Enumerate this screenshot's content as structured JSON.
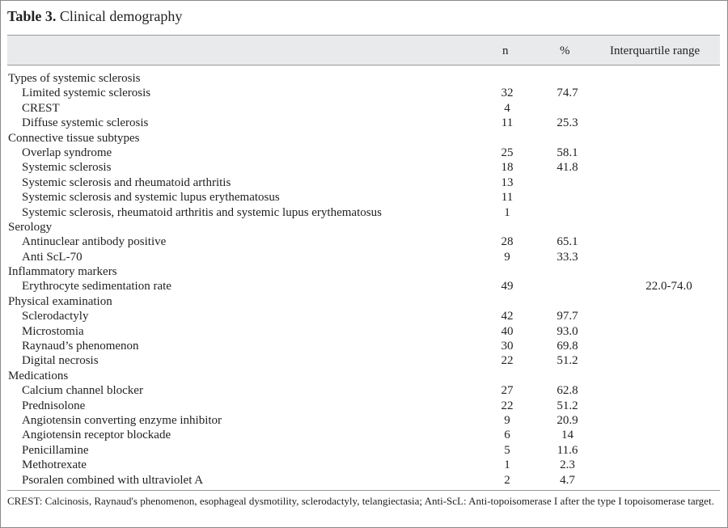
{
  "title": {
    "label": "Table 3.",
    "text": "Clinical demography"
  },
  "columns": [
    "n",
    "%",
    "Interquartile range"
  ],
  "rows": [
    {
      "label": "Types of systemic sclerosis",
      "type": "group",
      "n": "",
      "pct": "",
      "iqr": ""
    },
    {
      "label": "Limited systemic sclerosis",
      "type": "sub",
      "n": "32",
      "pct": "74.7",
      "iqr": ""
    },
    {
      "label": "CREST",
      "type": "sub",
      "n": "4",
      "pct": "",
      "iqr": ""
    },
    {
      "label": "Diffuse systemic sclerosis",
      "type": "sub",
      "n": "11",
      "pct": "25.3",
      "iqr": ""
    },
    {
      "label": "Connective tissue subtypes",
      "type": "group",
      "n": "",
      "pct": "",
      "iqr": ""
    },
    {
      "label": "Overlap syndrome",
      "type": "sub",
      "n": "25",
      "pct": "58.1",
      "iqr": ""
    },
    {
      "label": "Systemic sclerosis",
      "type": "sub",
      "n": "18",
      "pct": "41.8",
      "iqr": ""
    },
    {
      "label": "Systemic sclerosis and rheumatoid arthritis",
      "type": "sub",
      "n": "13",
      "pct": "",
      "iqr": ""
    },
    {
      "label": "Systemic sclerosis and systemic lupus erythematosus",
      "type": "sub",
      "n": "11",
      "pct": "",
      "iqr": ""
    },
    {
      "label": "Systemic sclerosis, rheumatoid arthritis and systemic lupus erythematosus",
      "type": "sub",
      "n": "1",
      "pct": "",
      "iqr": ""
    },
    {
      "label": "Serology",
      "type": "group",
      "n": "",
      "pct": "",
      "iqr": ""
    },
    {
      "label": "Antinuclear antibody positive",
      "type": "sub",
      "n": "28",
      "pct": "65.1",
      "iqr": ""
    },
    {
      "label": "Anti ScL-70",
      "type": "sub",
      "n": "9",
      "pct": "33.3",
      "iqr": ""
    },
    {
      "label": "Inflammatory markers",
      "type": "group",
      "n": "",
      "pct": "",
      "iqr": ""
    },
    {
      "label": "Erythrocyte sedimentation rate",
      "type": "sub",
      "n": "49",
      "pct": "",
      "iqr": "22.0-74.0"
    },
    {
      "label": "Physical examination",
      "type": "group",
      "n": "",
      "pct": "",
      "iqr": ""
    },
    {
      "label": "Sclerodactyly",
      "type": "sub",
      "n": "42",
      "pct": "97.7",
      "iqr": ""
    },
    {
      "label": "Microstomia",
      "type": "sub",
      "n": "40",
      "pct": "93.0",
      "iqr": ""
    },
    {
      "label": "Raynaud’s phenomenon",
      "type": "sub",
      "n": "30",
      "pct": "69.8",
      "iqr": ""
    },
    {
      "label": "Digital necrosis",
      "type": "sub",
      "n": "22",
      "pct": "51.2",
      "iqr": ""
    },
    {
      "label": "Medications",
      "type": "group",
      "n": "",
      "pct": "",
      "iqr": ""
    },
    {
      "label": "Calcium channel blocker",
      "type": "sub",
      "n": "27",
      "pct": "62.8",
      "iqr": ""
    },
    {
      "label": "Prednisolone",
      "type": "sub",
      "n": "22",
      "pct": "51.2",
      "iqr": ""
    },
    {
      "label": "Angiotensin converting enzyme inhibitor",
      "type": "sub",
      "n": "9",
      "pct": "20.9",
      "iqr": ""
    },
    {
      "label": "Angiotensin receptor blockade",
      "type": "sub",
      "n": "6",
      "pct": "14",
      "iqr": ""
    },
    {
      "label": "Penicillamine",
      "type": "sub",
      "n": "5",
      "pct": "11.6",
      "iqr": ""
    },
    {
      "label": "Methotrexate",
      "type": "sub",
      "n": "1",
      "pct": "2.3",
      "iqr": ""
    },
    {
      "label": "Psoralen combined with ultraviolet A",
      "type": "sub",
      "n": "2",
      "pct": "4.7",
      "iqr": ""
    }
  ],
  "footnote": "CREST: Calcinosis, Raynaud's phenomenon, esophageal dysmotility, sclerodactyly, telangiectasia; Anti-ScL: Anti-topoisomerase I after the type I topoisomerase target."
}
